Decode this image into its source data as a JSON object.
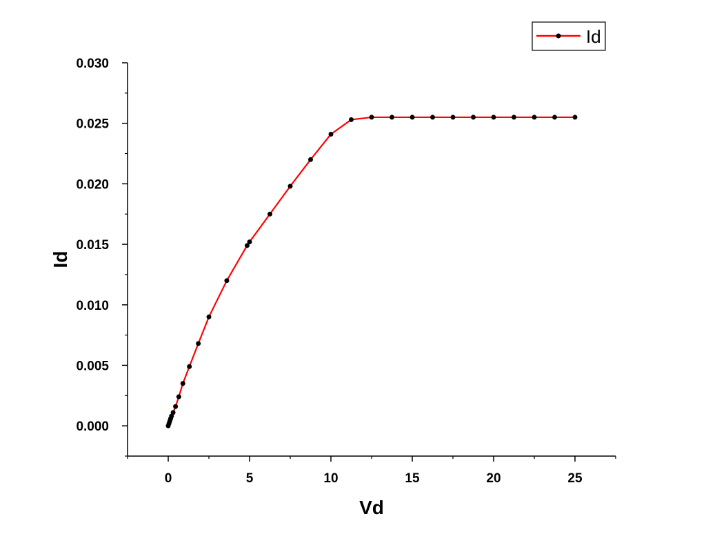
{
  "chart_data": {
    "type": "line",
    "xlabel": "Vd",
    "ylabel": "Id",
    "xlim": [
      -2.5,
      27.5
    ],
    "ylim": [
      -0.0025,
      0.03
    ],
    "x_ticks": [
      0,
      5,
      10,
      15,
      20,
      25
    ],
    "x_tick_labels": [
      "0",
      "5",
      "10",
      "15",
      "20",
      "25"
    ],
    "y_ticks": [
      0.0,
      0.005,
      0.01,
      0.015,
      0.02,
      0.025,
      0.03
    ],
    "y_tick_labels": [
      "0.000",
      "0.005",
      "0.010",
      "0.015",
      "0.020",
      "0.025",
      "0.030"
    ],
    "grid": false,
    "legend_position": "top-right",
    "series": [
      {
        "name": "Id",
        "color": "#ff0000",
        "marker_color": "#000000",
        "x": [
          0.0,
          0.05,
          0.1,
          0.15,
          0.2,
          0.3,
          0.45,
          0.65,
          0.9,
          1.3,
          1.85,
          2.5,
          3.6,
          4.85,
          5.0,
          6.25,
          7.5,
          8.75,
          10.0,
          11.25,
          12.5,
          13.75,
          15.0,
          16.25,
          17.5,
          18.75,
          20.0,
          21.25,
          22.5,
          23.75,
          25.0
        ],
        "y": [
          0.0,
          0.0002,
          0.0004,
          0.0006,
          0.0008,
          0.0011,
          0.0016,
          0.0024,
          0.0035,
          0.0049,
          0.0068,
          0.009,
          0.012,
          0.0149,
          0.0152,
          0.0175,
          0.0198,
          0.022,
          0.0241,
          0.0253,
          0.0255,
          0.0255,
          0.0255,
          0.0255,
          0.0255,
          0.0255,
          0.0255,
          0.0255,
          0.0255,
          0.0255,
          0.0255
        ]
      }
    ]
  }
}
